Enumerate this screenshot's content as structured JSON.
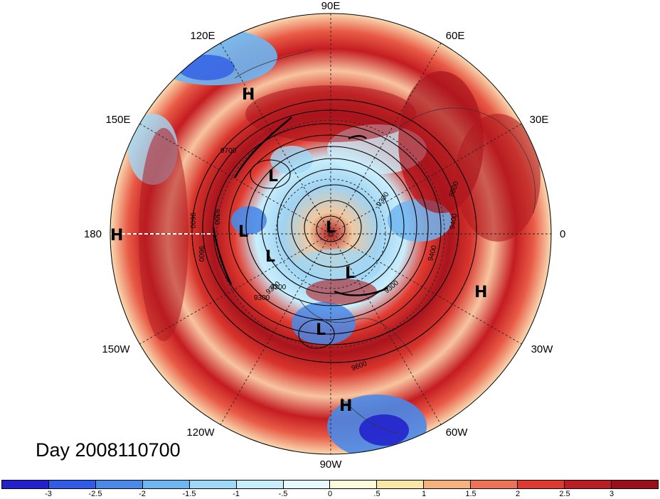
{
  "title": "Day 2008110700",
  "projection": "north-polar-stereographic",
  "longitude_labels": {
    "e90": "90E",
    "e60": "60E",
    "e30": "30E",
    "zero": "0",
    "w30": "30W",
    "w60": "60W",
    "w90": "90W",
    "w120": "120W",
    "w150": "150W",
    "d180": "180",
    "e150": "150E",
    "e120": "120E"
  },
  "pressure_systems": [
    {
      "type": "H",
      "location": "near 180"
    },
    {
      "type": "H",
      "location": "Siberia near 120E"
    },
    {
      "type": "H",
      "location": "North Atlantic near 30W"
    },
    {
      "type": "H",
      "location": "Gulf of Mexico near 90W"
    },
    {
      "type": "L",
      "location": "Bering Sea"
    },
    {
      "type": "L",
      "location": "Alaska"
    },
    {
      "type": "L",
      "location": "Arctic Ocean"
    },
    {
      "type": "L",
      "location": "Canada"
    },
    {
      "type": "L",
      "location": "Greenland"
    },
    {
      "type": "L",
      "location": "Great Lakes"
    }
  ],
  "contour_labels": [
    "9700",
    "9600",
    "9300",
    "9600",
    "9300",
    "9300",
    "9300",
    "9500",
    "9400",
    "9400",
    "9300",
    "9600",
    "9300"
  ],
  "colorbar": {
    "ticks": [
      "-3",
      "-2.5",
      "-2",
      "-1.5",
      "-1",
      "-.5",
      "0",
      ".5",
      "1",
      "1.5",
      "2",
      "2.5",
      "3"
    ],
    "colors": [
      "#2222cc",
      "#2f5ce6",
      "#4a8ae8",
      "#6eb6f2",
      "#9fd9f7",
      "#c8eefc",
      "#e6f9fc",
      "#fdfbd9",
      "#fbe7a5",
      "#f6b27c",
      "#ee7356",
      "#de3a2f",
      "#bb1d22",
      "#9b0f1a"
    ]
  }
}
